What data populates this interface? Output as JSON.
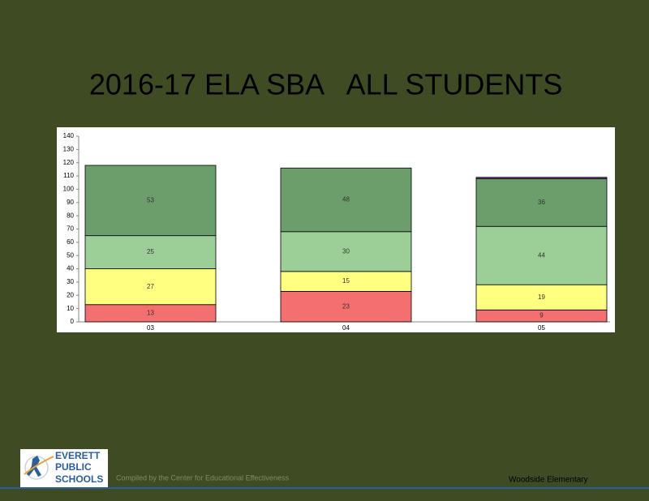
{
  "chart_data": {
    "type": "bar",
    "stacked": true,
    "title": "2016-17 ELA SBA",
    "subtitle": "ALL STUDENTS",
    "categories": [
      "03",
      "04",
      "05"
    ],
    "series": [
      {
        "color": "#f46f6f",
        "values": [
          13,
          23,
          9
        ]
      },
      {
        "color": "#ffff80",
        "values": [
          27,
          15,
          19
        ]
      },
      {
        "color": "#9ccf98",
        "values": [
          25,
          30,
          44
        ]
      },
      {
        "color": "#6b9e6b",
        "values": [
          53,
          48,
          36
        ]
      },
      {
        "color": "#8a3fb0",
        "values": [
          null,
          null,
          1
        ],
        "show_labels": false
      }
    ],
    "ylim": [
      0,
      140
    ],
    "yticks": [
      0,
      10,
      20,
      30,
      40,
      50,
      60,
      70,
      80,
      90,
      100,
      110,
      120,
      130,
      140
    ],
    "grid": false
  },
  "logo": {
    "lines": [
      "EVERETT",
      "PUBLIC",
      "SCHOOLS"
    ]
  },
  "footer": {
    "credit": "Compiled by the Center for Educational Effectiveness",
    "school": "Woodside Elementary"
  }
}
